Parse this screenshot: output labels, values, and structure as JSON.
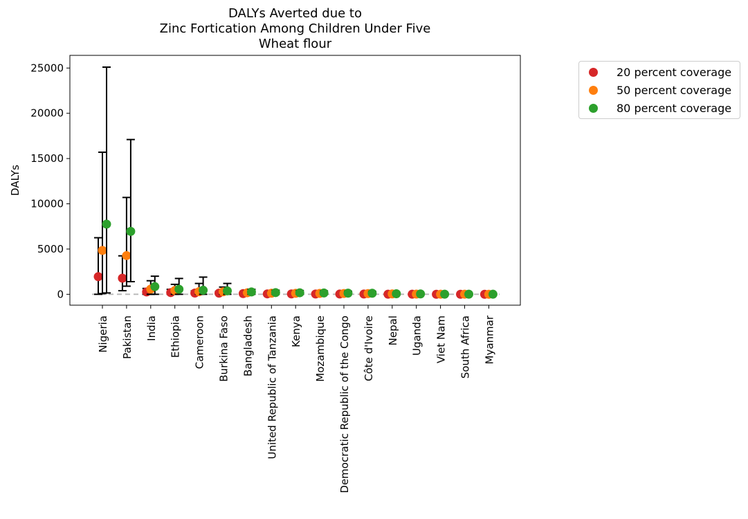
{
  "chart_data": {
    "type": "scatter",
    "title_lines": [
      "DALYs Averted due to",
      "Zinc Fortication Among Children Under Five",
      "Wheat flour"
    ],
    "xlabel": "",
    "ylabel": "DALYs",
    "ylim": [
      -1200,
      26400
    ],
    "yticks": [
      0,
      5000,
      10000,
      15000,
      20000,
      25000
    ],
    "grid": false,
    "legend_position": "outside-right",
    "reference_line": {
      "y": 0,
      "style": "dashed",
      "color": "#bbbbbb"
    },
    "categories": [
      "Nigeria",
      "Pakistan",
      "India",
      "Ethiopia",
      "Cameroon",
      "Burkina Faso",
      "Bangladesh",
      "United Republic of Tanzania",
      "Kenya",
      "Mozambique",
      "Democratic Republic of the Congo",
      "Côte d'Ivoire",
      "Nepal",
      "Uganda",
      "Viet Nam",
      "South Africa",
      "Myanmar"
    ],
    "series": [
      {
        "name": "20 percent coverage",
        "color": "#d62728",
        "values": [
          1950,
          1780,
          260,
          190,
          140,
          130,
          80,
          45,
          40,
          35,
          30,
          30,
          15,
          10,
          5,
          5,
          3
        ],
        "lower": [
          0,
          400,
          0,
          0,
          0,
          0,
          0,
          0,
          0,
          0,
          0,
          0,
          0,
          0,
          0,
          0,
          0
        ],
        "upper": [
          6250,
          4250,
          650,
          550,
          380,
          320,
          180,
          120,
          120,
          100,
          90,
          80,
          40,
          30,
          10,
          10,
          8
        ]
      },
      {
        "name": "50 percent coverage",
        "color": "#ff7f0e",
        "values": [
          4850,
          4280,
          580,
          420,
          290,
          280,
          170,
          120,
          110,
          100,
          90,
          80,
          40,
          25,
          10,
          10,
          6
        ],
        "lower": [
          80,
          900,
          0,
          0,
          0,
          0,
          0,
          0,
          0,
          0,
          0,
          0,
          0,
          0,
          0,
          0,
          0
        ],
        "upper": [
          15700,
          10700,
          1500,
          1100,
          1200,
          800,
          380,
          300,
          300,
          250,
          230,
          200,
          100,
          70,
          20,
          20,
          15
        ]
      },
      {
        "name": "80 percent coverage",
        "color": "#2ca02c",
        "values": [
          7750,
          6950,
          850,
          560,
          450,
          380,
          260,
          190,
          170,
          150,
          130,
          120,
          60,
          40,
          15,
          15,
          10
        ],
        "lower": [
          150,
          1400,
          0,
          0,
          0,
          0,
          0,
          0,
          0,
          0,
          0,
          0,
          0,
          0,
          0,
          0,
          0
        ],
        "upper": [
          25100,
          17100,
          2000,
          1750,
          1900,
          1200,
          550,
          450,
          420,
          380,
          340,
          320,
          160,
          110,
          30,
          30,
          25
        ]
      }
    ]
  }
}
